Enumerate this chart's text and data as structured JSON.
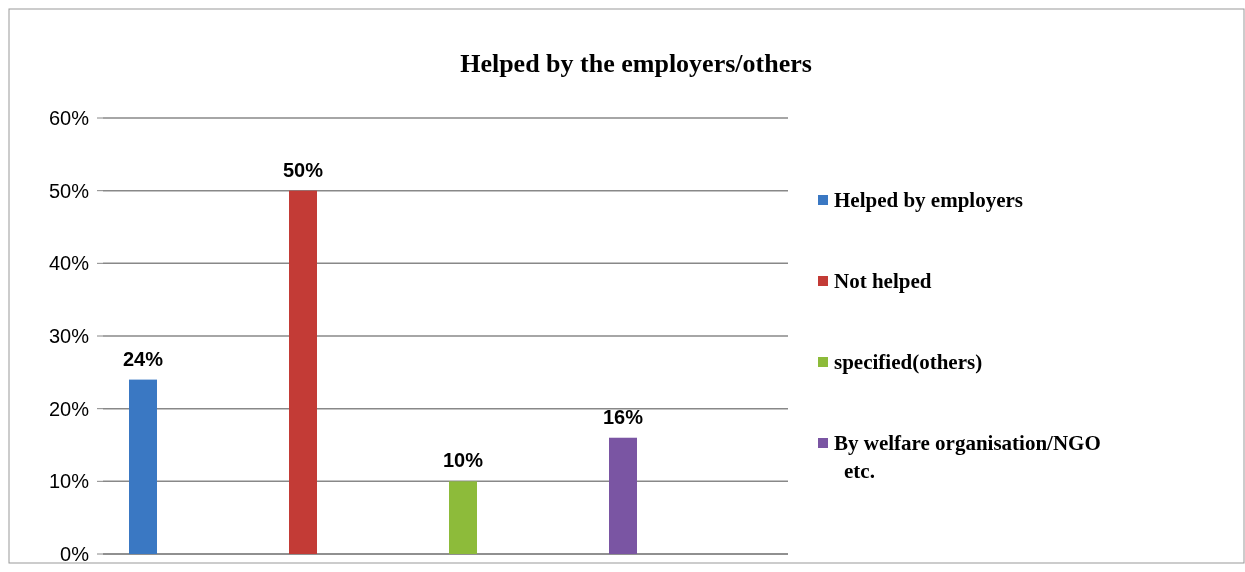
{
  "chart_data": {
    "type": "bar",
    "title": "Helped by the employers/others",
    "categories": [
      null,
      null,
      null,
      null
    ],
    "series": [
      {
        "name": "Helped by employers",
        "color": "#3a78c3",
        "values": [
          24,
          null,
          null,
          null
        ],
        "value_labels": [
          "24%",
          null,
          null,
          null
        ]
      },
      {
        "name": "Not helped",
        "color": "#c33b36",
        "values": [
          null,
          50,
          null,
          null
        ],
        "value_labels": [
          null,
          "50%",
          null,
          null
        ]
      },
      {
        "name": "specified(others)",
        "color": "#8dbb3a",
        "values": [
          null,
          null,
          10,
          null
        ],
        "value_labels": [
          null,
          null,
          "10%",
          null
        ]
      },
      {
        "name": "By welfare organisation/NGO etc.",
        "color": "#7a55a3",
        "values": [
          null,
          null,
          null,
          16
        ],
        "value_labels": [
          null,
          null,
          null,
          "16%"
        ]
      }
    ],
    "ylim": [
      0,
      60
    ],
    "yticks": [
      {
        "value": 0,
        "label": "0%"
      },
      {
        "value": 10,
        "label": "10%"
      },
      {
        "value": 20,
        "label": "20%"
      },
      {
        "value": 30,
        "label": "30%"
      },
      {
        "value": 40,
        "label": "40%"
      },
      {
        "value": 50,
        "label": "50%"
      },
      {
        "value": 60,
        "label": "60%"
      }
    ],
    "grid": "y",
    "legend": "right"
  }
}
